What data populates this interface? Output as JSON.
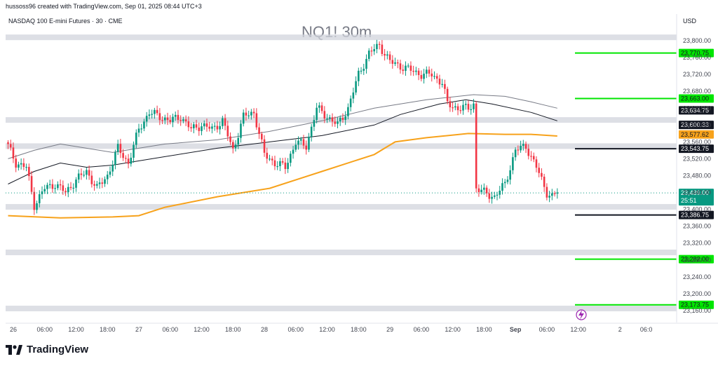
{
  "header": {
    "credit": "hussoss96 created with TradingView.com, Sep 01, 2025 08:44 UTC+3",
    "symbol": "NASDAQ 100 E-mini Futures · 30 · CME",
    "currency": "USD",
    "watermark": "NQ1! 30m"
  },
  "brand": {
    "name": "TradingView"
  },
  "colors": {
    "up": "#089981",
    "down": "#f23645",
    "ma_orange": "#f7a21b",
    "ma_dark": "#131722",
    "ma_grey": "#787b86",
    "zone": "#d1d4dc",
    "green_level": "#00e600",
    "black_level": "#131722"
  },
  "chart_data": {
    "type": "candlestick",
    "timeframe": "30m",
    "ylim": [
      23140,
      23830
    ],
    "y_ticks": [
      23160,
      23200,
      23240,
      23280,
      23320,
      23360,
      23400,
      23440,
      23480,
      23520,
      23560,
      23600,
      23640,
      23680,
      23720,
      23760,
      23800
    ],
    "x_ticks": [
      {
        "bar": 2,
        "label": "26"
      },
      {
        "bar": 14,
        "label": "06:00"
      },
      {
        "bar": 26,
        "label": "12:00"
      },
      {
        "bar": 38,
        "label": "18:00"
      },
      {
        "bar": 50,
        "label": "27"
      },
      {
        "bar": 62,
        "label": "06:00"
      },
      {
        "bar": 74,
        "label": "12:00"
      },
      {
        "bar": 86,
        "label": "18:00"
      },
      {
        "bar": 98,
        "label": "28"
      },
      {
        "bar": 110,
        "label": "06:00"
      },
      {
        "bar": 122,
        "label": "12:00"
      },
      {
        "bar": 134,
        "label": "18:00"
      },
      {
        "bar": 146,
        "label": "29"
      },
      {
        "bar": 158,
        "label": "06:00"
      },
      {
        "bar": 170,
        "label": "12:00"
      },
      {
        "bar": 182,
        "label": "18:00"
      },
      {
        "bar": 194,
        "label": "Sep"
      },
      {
        "bar": 206,
        "label": "06:00"
      },
      {
        "bar": 218,
        "label": "12:00"
      },
      {
        "bar": 234,
        "label": "2"
      },
      {
        "bar": 244,
        "label": "06:0"
      }
    ],
    "candles": [],
    "candle_keyframes": [
      [
        0,
        23550
      ],
      [
        3,
        23510
      ],
      [
        7,
        23500
      ],
      [
        10,
        23410
      ],
      [
        14,
        23450
      ],
      [
        18,
        23460
      ],
      [
        22,
        23440
      ],
      [
        26,
        23470
      ],
      [
        30,
        23490
      ],
      [
        34,
        23450
      ],
      [
        38,
        23480
      ],
      [
        42,
        23545
      ],
      [
        46,
        23510
      ],
      [
        50,
        23590
      ],
      [
        54,
        23630
      ],
      [
        58,
        23620
      ],
      [
        62,
        23610
      ],
      [
        66,
        23620
      ],
      [
        70,
        23590
      ],
      [
        74,
        23600
      ],
      [
        78,
        23590
      ],
      [
        82,
        23610
      ],
      [
        86,
        23540
      ],
      [
        90,
        23620
      ],
      [
        94,
        23630
      ],
      [
        98,
        23530
      ],
      [
        102,
        23510
      ],
      [
        106,
        23500
      ],
      [
        110,
        23560
      ],
      [
        114,
        23550
      ],
      [
        118,
        23640
      ],
      [
        122,
        23620
      ],
      [
        126,
        23600
      ],
      [
        130,
        23640
      ],
      [
        134,
        23720
      ],
      [
        138,
        23770
      ],
      [
        142,
        23790
      ],
      [
        146,
        23750
      ],
      [
        150,
        23740
      ],
      [
        154,
        23730
      ],
      [
        158,
        23720
      ],
      [
        162,
        23720
      ],
      [
        166,
        23700
      ],
      [
        168,
        23650
      ],
      [
        172,
        23640
      ],
      [
        176,
        23640
      ],
      [
        178,
        23650
      ],
      [
        179,
        23450
      ],
      [
        182,
        23440
      ],
      [
        186,
        23430
      ],
      [
        190,
        23460
      ],
      [
        194,
        23540
      ],
      [
        198,
        23550
      ],
      [
        202,
        23500
      ],
      [
        206,
        23440
      ],
      [
        208,
        23430
      ],
      [
        210,
        23440
      ]
    ],
    "moving_averages": [
      {
        "color": "ma_orange",
        "points": [
          [
            0,
            23385
          ],
          [
            20,
            23380
          ],
          [
            40,
            23382
          ],
          [
            50,
            23385
          ],
          [
            60,
            23405
          ],
          [
            80,
            23430
          ],
          [
            100,
            23450
          ],
          [
            120,
            23490
          ],
          [
            140,
            23530
          ],
          [
            148,
            23560
          ],
          [
            160,
            23570
          ],
          [
            176,
            23580
          ],
          [
            190,
            23578
          ],
          [
            200,
            23578
          ],
          [
            210,
            23574
          ]
        ]
      },
      {
        "color": "ma_dark",
        "points": [
          [
            0,
            23460
          ],
          [
            10,
            23490
          ],
          [
            20,
            23510
          ],
          [
            30,
            23500
          ],
          [
            40,
            23505
          ],
          [
            60,
            23525
          ],
          [
            80,
            23545
          ],
          [
            100,
            23560
          ],
          [
            120,
            23575
          ],
          [
            140,
            23600
          ],
          [
            150,
            23625
          ],
          [
            165,
            23650
          ],
          [
            175,
            23660
          ],
          [
            185,
            23650
          ],
          [
            200,
            23630
          ],
          [
            210,
            23610
          ]
        ]
      },
      {
        "color": "ma_grey",
        "points": [
          [
            0,
            23520
          ],
          [
            10,
            23540
          ],
          [
            20,
            23555
          ],
          [
            30,
            23545
          ],
          [
            40,
            23535
          ],
          [
            60,
            23555
          ],
          [
            80,
            23565
          ],
          [
            100,
            23585
          ],
          [
            120,
            23610
          ],
          [
            140,
            23640
          ],
          [
            160,
            23660
          ],
          [
            178,
            23672
          ],
          [
            190,
            23668
          ],
          [
            200,
            23655
          ],
          [
            210,
            23640
          ]
        ]
      }
    ],
    "zones": [
      23808,
      23612,
      23550,
      23406,
      23298,
      23165
    ],
    "levels": [
      {
        "value": 23770.75,
        "label": "23,770.75",
        "kind": "green"
      },
      {
        "value": 23663.0,
        "label": "23,663.00",
        "kind": "green"
      },
      {
        "value": 23543.75,
        "label": "23,543.75",
        "kind": "black"
      },
      {
        "value": 23386.75,
        "label": "23,386.75",
        "kind": "black"
      },
      {
        "value": 23282.0,
        "label": "23,282.00",
        "kind": "green"
      },
      {
        "value": 23173.75,
        "label": "23,173.75",
        "kind": "green"
      }
    ],
    "price_tags": [
      {
        "value": 23634.75,
        "label": "23,634.75",
        "style": "dark"
      },
      {
        "value": 23600.33,
        "label": "23,600.33",
        "style": "dark"
      },
      {
        "value": 23577.62,
        "label": "23,577.62",
        "style": "orange"
      }
    ],
    "last_price": {
      "value": 23439.0,
      "label": "23,439.00",
      "countdown": "25:51"
    }
  }
}
